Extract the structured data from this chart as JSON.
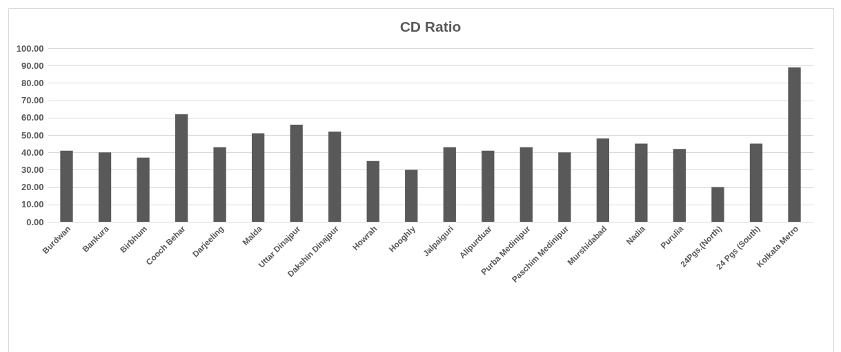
{
  "chart_data": {
    "type": "bar",
    "title": "CD Ratio",
    "categories": [
      "Burdwan",
      "Bankura",
      "Birbhum",
      "Cooch Behar",
      "Darjeeling",
      "Malda",
      "Uttar Dinajpur",
      "Dakshin Dinajpur",
      "Howrah",
      "Hooghly",
      "Jalpaiguri",
      "Alipurduar",
      "Purba Medinipur",
      "Paschim Medinipur",
      "Murshidabad",
      "Nadia",
      "Purulia",
      "24Pgs.(North)",
      "24 Pgs (South)",
      "Kolkata Metro"
    ],
    "values": [
      41,
      40,
      37,
      62,
      43,
      51,
      56,
      52,
      35,
      30,
      43,
      41,
      43,
      40,
      48,
      45,
      42,
      20,
      45,
      89
    ],
    "color": "#595959",
    "ylim": [
      0,
      100
    ],
    "yticks": [
      {
        "value": 0,
        "label": "0.00"
      },
      {
        "value": 10,
        "label": "10.00"
      },
      {
        "value": 20,
        "label": "20.00"
      },
      {
        "value": 30,
        "label": "30.00"
      },
      {
        "value": 40,
        "label": "40.00"
      },
      {
        "value": 50,
        "label": "50.00"
      },
      {
        "value": 60,
        "label": "60.00"
      },
      {
        "value": 70,
        "label": "70.00"
      },
      {
        "value": 80,
        "label": "80.00"
      },
      {
        "value": 90,
        "label": "90.00"
      },
      {
        "value": 100,
        "label": "100.00"
      }
    ],
    "grid": "y"
  }
}
